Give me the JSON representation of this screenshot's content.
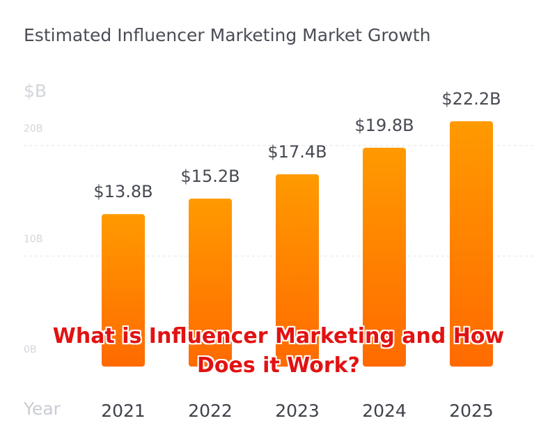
{
  "chart_data": {
    "type": "bar",
    "title": "Estimated Influencer Marketing Market Growth",
    "y_unit_label": "$B",
    "xlabel": "Year",
    "ylabel": "",
    "categories": [
      "2021",
      "2022",
      "2023",
      "2024",
      "2025"
    ],
    "values": [
      13.8,
      15.2,
      17.4,
      19.8,
      22.2
    ],
    "data_labels": [
      "$13.8B",
      "$15.2B",
      "$17.4B",
      "$19.8B",
      "$22.2B"
    ],
    "y_ticks": [
      0,
      10,
      20
    ],
    "y_tick_labels": [
      "0B",
      "10B",
      "20B"
    ],
    "ylim": [
      0,
      22.2
    ],
    "grid": true,
    "legend": "none",
    "colors": {
      "bar_top": "#ff9a00",
      "bar_bottom": "#ff6a00",
      "grid": "#e6e8ec",
      "value_label": "#474a52",
      "category_label": "#3f424a",
      "tick_label": "#d2d5db"
    }
  },
  "overlay": {
    "line1": "What is Influencer Marketing and How",
    "line2": "Does it Work?",
    "color": "#e21212"
  }
}
